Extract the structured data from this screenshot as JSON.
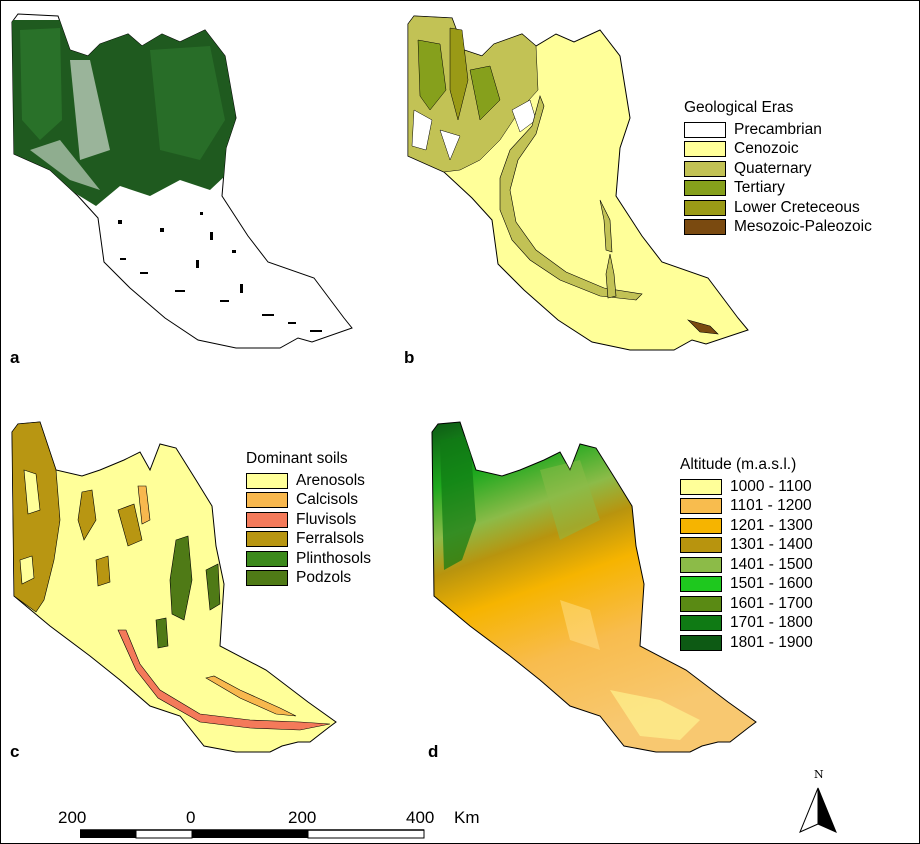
{
  "panels": [
    {
      "letter": "a"
    },
    {
      "letter": "b"
    },
    {
      "letter": "c"
    },
    {
      "letter": "d"
    }
  ],
  "legends": {
    "geology": {
      "title": "Geological Eras",
      "items": [
        {
          "label": "Precambrian",
          "color": "#ffffff"
        },
        {
          "label": "Cenozoic",
          "color": "#ffff99"
        },
        {
          "label": "Quaternary",
          "color": "#c2c255"
        },
        {
          "label": "Tertiary",
          "color": "#86a01c"
        },
        {
          "label": "Lower Creteceous",
          "color": "#9a9a16"
        },
        {
          "label": "Mesozoic-Paleozoic",
          "color": "#7a4a10"
        }
      ]
    },
    "soils": {
      "title": "Dominant soils",
      "items": [
        {
          "label": "Arenosols",
          "color": "#ffff99"
        },
        {
          "label": "Calcisols",
          "color": "#f8b84e"
        },
        {
          "label": "Fluvisols",
          "color": "#f47a5a"
        },
        {
          "label": "Ferralsols",
          "color": "#b89612"
        },
        {
          "label": "Plinthosols",
          "color": "#3c8a1c"
        },
        {
          "label": "Podzols",
          "color": "#4f7a16"
        }
      ]
    },
    "altitude": {
      "title": "Altitude (m.a.s.l.)",
      "items": [
        {
          "label": "1000 - 1100",
          "color": "#ffff99"
        },
        {
          "label": "1101 - 1200",
          "color": "#f8bc4e"
        },
        {
          "label": "1201 - 1300",
          "color": "#f6b400"
        },
        {
          "label": "1301 - 1400",
          "color": "#b8940e"
        },
        {
          "label": "1401 - 1500",
          "color": "#8cbb48"
        },
        {
          "label": "1501 - 1600",
          "color": "#1ec81e"
        },
        {
          "label": "1601 - 1700",
          "color": "#5a8a14"
        },
        {
          "label": "1701 - 1800",
          "color": "#0f7a14"
        },
        {
          "label": "1801 - 1900",
          "color": "#0d5a14"
        }
      ]
    }
  },
  "scale_bar": {
    "ticks": [
      "200",
      "0",
      "200",
      "400"
    ],
    "unit": "Km"
  },
  "north_arrow": {
    "label": "N"
  },
  "colors": {
    "forest_dark": "#1f5a1f",
    "outline": "#000000"
  }
}
